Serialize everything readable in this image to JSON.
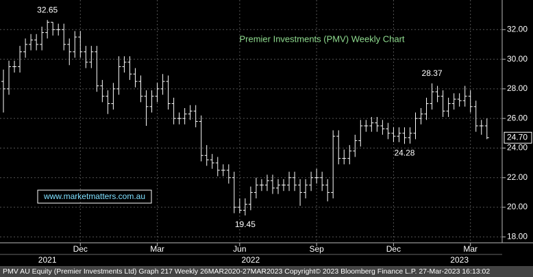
{
  "chart_data": {
    "type": "ohlc",
    "title": "Premier Investments (PMV) Weekly Chart",
    "watermark": "www.marketmatters.com.au",
    "footer": "PMV AU Equity (Premier Investments Ltd) Graph 217  Weekly 26MAR2020-27MAR2023 Copyright© 2023 Bloomberg Finance L.P. 27-Mar-2023 16:13:02",
    "color": "#ffffff",
    "open": [
      28.5,
      28,
      29.5,
      29.5,
      30.5,
      31,
      31.3,
      31,
      31.8,
      32.5,
      32,
      32,
      31,
      30.5,
      31.5,
      30.5,
      29.8,
      30.5,
      28.2,
      27.5,
      27,
      28,
      29.5,
      29.8,
      29,
      28.5,
      27.5,
      26.8,
      27.5,
      28,
      28.5,
      27,
      26,
      26,
      26.3,
      26.5,
      25.8,
      23.5,
      23.2,
      23,
      22.5,
      22.5,
      22,
      20,
      19.8,
      20.2,
      21,
      21.5,
      21.5,
      21.8,
      21.3,
      21.5,
      21.5,
      22,
      21.5,
      21,
      21.5,
      22,
      22,
      21.5,
      21,
      24.8,
      23.3,
      23.3,
      23.8,
      24.5,
      25.5,
      25.5,
      25.7,
      25.5,
      25.3,
      25,
      24.8,
      25,
      24.7,
      25,
      26,
      26.3,
      27,
      27.8,
      27.5,
      26.5,
      27,
      27.3,
      27.2,
      27.5,
      26.8,
      25.5,
      25.5
    ],
    "high": [
      29.3,
      29.9,
      29.9,
      30.9,
      31.4,
      31.7,
      31.7,
      32.2,
      32.65,
      32.5,
      32.4,
      32.4,
      31.4,
      31.9,
      31.9,
      30.9,
      30.9,
      30.9,
      28.6,
      27.9,
      28.4,
      30.2,
      30.2,
      30.2,
      29.4,
      28.9,
      27.9,
      27.9,
      28.4,
      29,
      28.9,
      27.4,
      26.4,
      26.7,
      26.9,
      26.9,
      26.2,
      24.2,
      23.6,
      23.4,
      22.9,
      22.9,
      22.4,
      20.6,
      20.6,
      21.4,
      22,
      21.9,
      22.2,
      22.2,
      21.9,
      21.9,
      22.4,
      22.4,
      21.9,
      21.9,
      22.4,
      22.6,
      22.4,
      21.9,
      25.2,
      25.2,
      23.9,
      24.2,
      24.9,
      25.9,
      25.9,
      26.1,
      26.1,
      25.9,
      25.7,
      25.4,
      25.4,
      25.4,
      25.4,
      26.4,
      26.7,
      27.4,
      28.37,
      28.2,
      27.9,
      27.4,
      27.7,
      27.7,
      28.2,
      27.9,
      27.2,
      25.9,
      26
    ],
    "low": [
      26.4,
      27.6,
      29.1,
      29.1,
      30.1,
      30.6,
      30.6,
      30.6,
      31.4,
      31.6,
      31.6,
      30.6,
      29.6,
      30.1,
      30.1,
      29.4,
      29.4,
      27.8,
      27.1,
      26.3,
      26.6,
      27.6,
      29.1,
      28.6,
      28.1,
      27.1,
      25.5,
      26.4,
      27.1,
      27.6,
      26.6,
      25.6,
      25.6,
      25.6,
      25.9,
      25.4,
      23.1,
      22.8,
      22.6,
      22.1,
      22.1,
      21.6,
      19.6,
      19.6,
      19.45,
      19.8,
      20.6,
      21.1,
      21.1,
      20.9,
      20.9,
      21.1,
      21.1,
      21.1,
      20.1,
      20.6,
      21.1,
      21.6,
      21.1,
      20.4,
      20.6,
      22.9,
      22.9,
      22.9,
      23.4,
      24.1,
      25.1,
      25.1,
      25.1,
      24.9,
      24.6,
      24.4,
      24.4,
      24.28,
      24.3,
      24.6,
      25.6,
      25.9,
      26.6,
      27.1,
      26.1,
      26.1,
      26.6,
      26.8,
      26.8,
      26.4,
      25.1,
      24.9,
      24.6
    ],
    "close": [
      28,
      29.5,
      29.5,
      30.5,
      31,
      31.3,
      31,
      31.8,
      32.5,
      32,
      32,
      31,
      30.5,
      31.5,
      30.5,
      29.8,
      30.5,
      28.2,
      27.5,
      27,
      28,
      29.5,
      29.8,
      29,
      28.5,
      27.5,
      26.8,
      27.5,
      28,
      28.5,
      27,
      26,
      26,
      26.3,
      26.5,
      25.8,
      23.5,
      23.2,
      23,
      22.5,
      22.5,
      22,
      20,
      19.8,
      20.2,
      21,
      21.5,
      21.5,
      21.8,
      21.3,
      21.5,
      21.5,
      22,
      21.5,
      21,
      21.5,
      22,
      22,
      21.5,
      21,
      24.8,
      23.3,
      23.3,
      23.8,
      24.5,
      25.5,
      25.5,
      25.7,
      25.5,
      25.3,
      25,
      24.8,
      25,
      24.7,
      25,
      26,
      26.3,
      27,
      27.8,
      27.5,
      26.5,
      27,
      27.3,
      27.2,
      27.5,
      26.8,
      25.5,
      25.5,
      24.7
    ],
    "annotations": [
      {
        "label": "32.65",
        "value": 32.65,
        "at": "high"
      },
      {
        "label": "19.45",
        "value": 19.45,
        "at": "low"
      },
      {
        "label": "28.37",
        "value": 28.37,
        "at": "high"
      },
      {
        "label": "24.28",
        "value": 24.28,
        "at": "low"
      }
    ],
    "last_price": {
      "value": 24.7,
      "label": "24.70"
    },
    "ylim": [
      17.6,
      34
    ],
    "yticks": [
      {
        "value": 18,
        "label": "18.00"
      },
      {
        "value": 20,
        "label": "20.00"
      },
      {
        "value": 22,
        "label": "22.00"
      },
      {
        "value": 24,
        "label": "24.00"
      },
      {
        "value": 26,
        "label": "26.00"
      },
      {
        "value": 28,
        "label": "28.00"
      },
      {
        "value": 30,
        "label": "30.00"
      },
      {
        "value": 32,
        "label": "32.00"
      }
    ],
    "xticks": [
      {
        "value": 14,
        "label": "Dec"
      },
      {
        "value": 28,
        "label": "Mar"
      },
      {
        "value": 43,
        "label": "Jun"
      },
      {
        "value": 57,
        "label": "Sep"
      },
      {
        "value": 71,
        "label": "Dec"
      },
      {
        "value": 85,
        "label": "Mar"
      }
    ],
    "year_labels": [
      {
        "value": 8,
        "label": "2021"
      },
      {
        "value": 45,
        "label": "2022"
      },
      {
        "value": 83,
        "label": "2023"
      }
    ],
    "grid": true
  }
}
